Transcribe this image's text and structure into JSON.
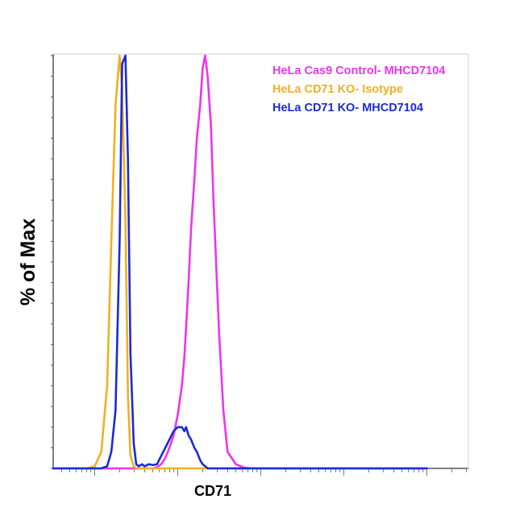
{
  "chart_data": {
    "type": "histogram",
    "xlabel": "CD71",
    "ylabel": "% of Max",
    "x_scale": "log",
    "ylim": [
      0,
      100
    ],
    "grid": false,
    "legend_placement": "top-right",
    "x": [
      0.5,
      0.8,
      0.9,
      1.0,
      1.08,
      1.15,
      1.2,
      1.25,
      1.3,
      1.33,
      1.37,
      1.4,
      1.43,
      1.47,
      1.5,
      1.53,
      1.57,
      1.6,
      1.65,
      1.7,
      1.75,
      1.8,
      1.85,
      1.9,
      1.95,
      2.0,
      2.05,
      2.08,
      2.1,
      2.13,
      2.16,
      2.2,
      2.23,
      2.27,
      2.3,
      2.33,
      2.36,
      2.4,
      2.43,
      2.47,
      2.5,
      2.55,
      2.6,
      2.7,
      2.8,
      2.9,
      3.0,
      3.2,
      3.6,
      4.0,
      4.5,
      5.0
    ],
    "series": [
      {
        "name": "HeLa Cas9 Control- MHCD7104",
        "color": "#ee33ee",
        "values": [
          0,
          0,
          0,
          0,
          0,
          0,
          0,
          0,
          0,
          0,
          0,
          0,
          0,
          0,
          0,
          0,
          0,
          0,
          0,
          0,
          0.3,
          1,
          2.5,
          5,
          8,
          13,
          20,
          27,
          34,
          45,
          58,
          70,
          80,
          88,
          97,
          100,
          95,
          83,
          65,
          46,
          32,
          14,
          4,
          1,
          0.2,
          0,
          0,
          0,
          0,
          0,
          0,
          0
        ]
      },
      {
        "name": "HeLa CD71  KO- Isotype",
        "color": "#f0b020",
        "values": [
          0,
          0,
          0,
          0.5,
          4,
          20,
          55,
          88,
          100,
          92,
          60,
          18,
          3,
          0.5,
          0,
          0,
          0,
          0,
          0,
          0,
          0,
          0,
          0,
          0,
          0,
          0,
          0,
          0,
          0,
          0,
          0,
          0,
          0,
          0,
          0,
          0,
          0,
          0,
          0,
          0,
          0,
          0,
          0,
          0,
          0,
          0,
          0,
          0,
          0,
          0,
          0,
          0
        ]
      },
      {
        "name": "HeLa CD71 KO-  MHCD7104",
        "color": "#1a2ad8",
        "values": [
          0,
          0,
          0,
          0,
          0,
          0.5,
          4,
          14,
          55,
          98,
          100,
          75,
          28,
          6,
          1,
          0.5,
          1,
          0.5,
          1,
          0.8,
          1,
          3,
          5,
          7,
          9,
          10,
          10,
          9,
          10,
          8,
          7,
          5,
          4,
          2,
          1,
          0.5,
          0,
          0,
          0,
          0,
          0,
          0,
          0,
          0,
          0,
          0,
          0,
          0,
          0,
          0,
          0,
          0
        ]
      }
    ]
  }
}
